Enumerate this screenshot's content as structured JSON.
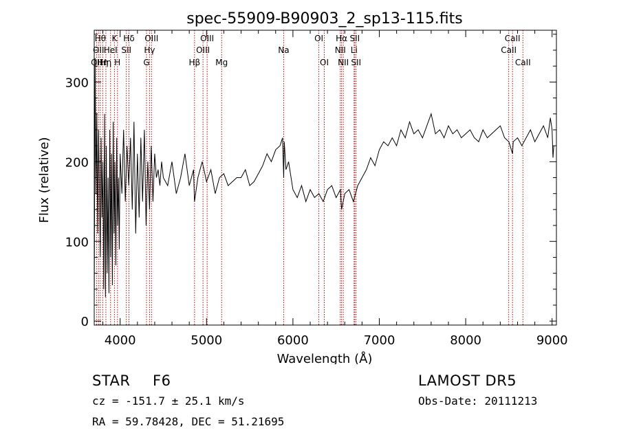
{
  "chart_data": {
    "type": "line",
    "title": "spec-55909-B90903_2_sp13-115.fits",
    "xlabel": "Wavelength (Å)",
    "ylabel": "Flux (relative)",
    "xlim": [
      3700,
      9050
    ],
    "ylim": [
      -5,
      365
    ],
    "xticks": [
      4000,
      5000,
      6000,
      7000,
      8000,
      9000
    ],
    "yticks": [
      0,
      100,
      200,
      300
    ],
    "grid": false,
    "series": [
      {
        "x": [
          3700,
          3710,
          3720,
          3730,
          3740,
          3750,
          3760,
          3770,
          3780,
          3790,
          3800,
          3810,
          3820,
          3830,
          3840,
          3850,
          3860,
          3870,
          3880,
          3890,
          3900,
          3910,
          3920,
          3930,
          3940,
          3950,
          3960,
          3970,
          3980,
          3990,
          4000,
          4020,
          4040,
          4060,
          4080,
          4100,
          4120,
          4140,
          4160,
          4180,
          4200,
          4220,
          4240,
          4260,
          4280,
          4300,
          4320,
          4340,
          4360,
          4380,
          4400,
          4420,
          4440,
          4460,
          4480,
          4500,
          4550,
          4600,
          4650,
          4700,
          4750,
          4800,
          4850,
          4861,
          4900,
          4950,
          5000,
          5050,
          5100,
          5150,
          5200,
          5250,
          5300,
          5350,
          5400,
          5450,
          5500,
          5550,
          5600,
          5650,
          5700,
          5750,
          5800,
          5850,
          5880,
          5893,
          5900,
          5920,
          5950,
          6000,
          6050,
          6100,
          6150,
          6200,
          6250,
          6300,
          6350,
          6400,
          6450,
          6500,
          6550,
          6563,
          6600,
          6650,
          6700,
          6750,
          6800,
          6850,
          6900,
          6950,
          7000,
          7050,
          7100,
          7150,
          7200,
          7250,
          7300,
          7350,
          7400,
          7450,
          7500,
          7550,
          7600,
          7650,
          7700,
          7750,
          7800,
          7850,
          7900,
          7950,
          8000,
          8050,
          8100,
          8150,
          8200,
          8250,
          8300,
          8350,
          8400,
          8450,
          8500,
          8542,
          8550,
          8600,
          8650,
          8700,
          8750,
          8800,
          8850,
          8900,
          8950,
          8980,
          9000,
          9010,
          9020
        ],
        "y": [
          20,
          330,
          160,
          260,
          110,
          240,
          170,
          80,
          230,
          130,
          200,
          40,
          260,
          30,
          220,
          60,
          180,
          35,
          240,
          80,
          210,
          45,
          250,
          110,
          200,
          70,
          230,
          120,
          180,
          90,
          210,
          160,
          240,
          150,
          220,
          170,
          230,
          140,
          250,
          110,
          210,
          130,
          230,
          150,
          240,
          120,
          200,
          140,
          220,
          150,
          210,
          180,
          190,
          170,
          200,
          180,
          170,
          200,
          160,
          180,
          210,
          170,
          190,
          150,
          180,
          200,
          175,
          190,
          160,
          180,
          185,
          170,
          175,
          180,
          180,
          190,
          170,
          175,
          185,
          195,
          210,
          200,
          215,
          220,
          230,
          180,
          225,
          190,
          200,
          165,
          155,
          170,
          150,
          165,
          155,
          160,
          150,
          165,
          170,
          155,
          165,
          140,
          160,
          165,
          150,
          170,
          180,
          190,
          205,
          195,
          215,
          225,
          220,
          230,
          220,
          240,
          230,
          250,
          235,
          240,
          230,
          245,
          260,
          235,
          240,
          230,
          245,
          235,
          240,
          230,
          235,
          240,
          230,
          225,
          240,
          230,
          235,
          240,
          245,
          230,
          225,
          210,
          225,
          230,
          220,
          230,
          240,
          225,
          235,
          245,
          230,
          255,
          240,
          205,
          220
        ]
      }
    ],
    "lines": [
      {
        "w": 3727,
        "label": "OII",
        "row": 2
      },
      {
        "w": 3750,
        "label": "OII",
        "row": 1
      },
      {
        "w": 3770,
        "label": "Hθ",
        "row": 0
      },
      {
        "w": 3798,
        "label": "Hη",
        "row": 2
      },
      {
        "w": 3835,
        "label": "Hη",
        "row": 2
      },
      {
        "w": 3889,
        "label": "HeI",
        "row": 1
      },
      {
        "w": 3934,
        "label": "K",
        "row": 0
      },
      {
        "w": 3969,
        "label": "H",
        "row": 2
      },
      {
        "w": 4072,
        "label": "SII",
        "row": 1
      },
      {
        "w": 4102,
        "label": "Hδ",
        "row": 0
      },
      {
        "w": 4305,
        "label": "G",
        "row": 2
      },
      {
        "w": 4340,
        "label": "Hγ",
        "row": 1
      },
      {
        "w": 4363,
        "label": "OIII",
        "row": 0
      },
      {
        "w": 4861,
        "label": "Hβ",
        "row": 2
      },
      {
        "w": 4959,
        "label": "OIII",
        "row": 1
      },
      {
        "w": 5007,
        "label": "OIII",
        "row": 0
      },
      {
        "w": 5175,
        "label": "Mg",
        "row": 2
      },
      {
        "w": 5893,
        "label": "Na",
        "row": 1
      },
      {
        "w": 6300,
        "label": "OI",
        "row": 0
      },
      {
        "w": 6363,
        "label": "OI",
        "row": 2
      },
      {
        "w": 6548,
        "label": "NII",
        "row": 1
      },
      {
        "w": 6563,
        "label": "Hα",
        "row": 0
      },
      {
        "w": 6583,
        "label": "NII",
        "row": 2
      },
      {
        "w": 6708,
        "label": "Li",
        "row": 1
      },
      {
        "w": 6716,
        "label": "SII",
        "row": 0
      },
      {
        "w": 6731,
        "label": "SII",
        "row": 2
      },
      {
        "w": 8498,
        "label": "CaII",
        "row": 1
      },
      {
        "w": 8542,
        "label": "CaII",
        "row": 0
      },
      {
        "w": 8662,
        "label": "CaII",
        "row": 2
      }
    ]
  },
  "info": {
    "object_class": "STAR",
    "subclass": "F6",
    "survey": "LAMOST DR5",
    "velocity": "cz = -151.7 ± 25.1 km/s",
    "obs_date": "Obs-Date: 20111213",
    "coords": "RA =  59.78428, DEC =  51.21695"
  }
}
